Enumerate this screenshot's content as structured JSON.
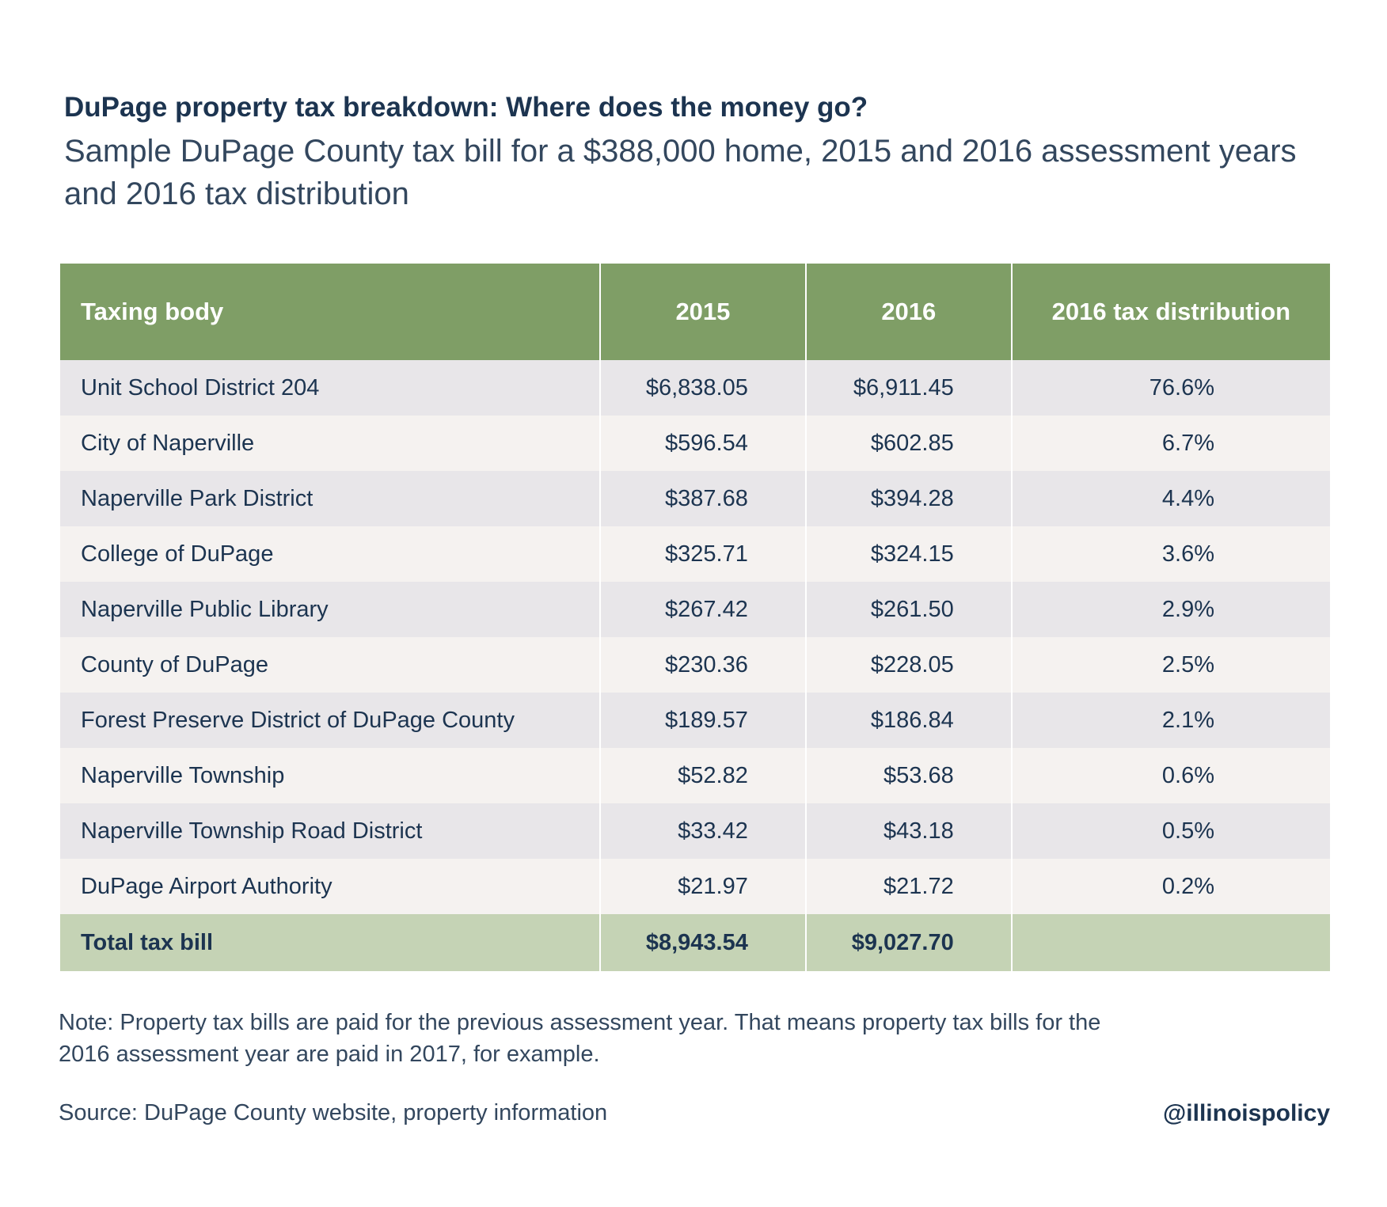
{
  "header": {
    "title": "DuPage property tax breakdown: Where does the money go?",
    "subtitle": "Sample DuPage County tax bill for a $388,000 home, 2015 and 2016 assessment years and 2016 tax distribution"
  },
  "table": {
    "columns": [
      "Taxing body",
      "2015",
      "2016",
      "2016 tax distribution"
    ],
    "rows": [
      [
        "Unit School District 204",
        "$6,838.05",
        "$6,911.45",
        "76.6%"
      ],
      [
        "City of Naperville",
        "$596.54",
        "$602.85",
        "6.7%"
      ],
      [
        "Naperville Park District",
        "$387.68",
        "$394.28",
        "4.4%"
      ],
      [
        "College of DuPage",
        "$325.71",
        "$324.15",
        "3.6%"
      ],
      [
        "Naperville Public Library",
        "$267.42",
        "$261.50",
        "2.9%"
      ],
      [
        "County of DuPage",
        "$230.36",
        "$228.05",
        "2.5%"
      ],
      [
        "Forest Preserve District of DuPage County",
        "$189.57",
        "$186.84",
        "2.1%"
      ],
      [
        "Naperville Township",
        "$52.82",
        "$53.68",
        "0.6%"
      ],
      [
        "Naperville Township Road District",
        "$33.42",
        "$43.18",
        "0.5%"
      ],
      [
        "DuPage Airport Authority",
        "$21.97",
        "$21.72",
        "0.2%"
      ]
    ],
    "total": {
      "label": "Total tax bill",
      "values": [
        "$8,943.54",
        "$9,027.70"
      ]
    }
  },
  "footer": {
    "note": "Note: Property tax bills are paid for the previous assessment year. That means property tax bills for the 2016 assessment year are paid in 2017, for example.",
    "source": "Source: DuPage County website, property information",
    "handle": "@illinoispolicy"
  }
}
